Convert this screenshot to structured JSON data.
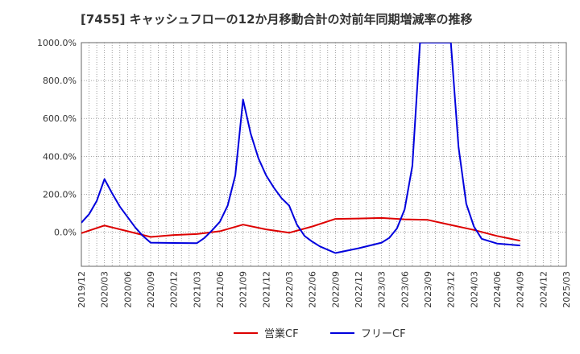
{
  "chart_data": {
    "type": "line",
    "title": "[7455]  キャッシュフローの12か月移動合計の対前年同期増減率の推移",
    "xlabel": "",
    "ylabel": "",
    "ylim": [
      -180,
      1000
    ],
    "yticks": [
      0,
      200,
      400,
      600,
      800,
      1000
    ],
    "ytick_labels": [
      "0.0%",
      "200.0%",
      "400.0%",
      "600.0%",
      "800.0%",
      "1000.0%"
    ],
    "x_months_range": [
      "2019/12",
      "2025/03"
    ],
    "xtick_labels": [
      "2019/12",
      "2020/03",
      "2020/06",
      "2020/09",
      "2020/12",
      "2021/03",
      "2021/06",
      "2021/09",
      "2021/12",
      "2022/03",
      "2022/06",
      "2022/09",
      "2022/12",
      "2023/03",
      "2023/06",
      "2023/09",
      "2023/12",
      "2024/03",
      "2024/06",
      "2024/09",
      "2024/12",
      "2025/03"
    ],
    "grid": true,
    "legend_position": "bottom-center",
    "series": [
      {
        "name": "営業CF",
        "color": "#dd0000",
        "x": [
          "2019/12",
          "2020/03",
          "2020/06",
          "2020/09",
          "2020/12",
          "2021/03",
          "2021/06",
          "2021/09",
          "2021/12",
          "2022/03",
          "2022/06",
          "2022/09",
          "2022/12",
          "2023/03",
          "2023/06",
          "2023/09",
          "2023/12",
          "2024/03",
          "2024/06",
          "2024/09"
        ],
        "values": [
          -5,
          35,
          5,
          -25,
          -15,
          -10,
          5,
          40,
          15,
          -3,
          30,
          70,
          72,
          75,
          68,
          65,
          38,
          12,
          -20,
          -45
        ]
      },
      {
        "name": "フリーCF",
        "color": "#0000dd",
        "x": [
          "2019/12",
          "2020/01",
          "2020/02",
          "2020/03",
          "2020/04",
          "2020/05",
          "2020/06",
          "2020/07",
          "2020/08",
          "2020/09",
          "2020/12",
          "2021/03",
          "2021/04",
          "2021/05",
          "2021/06",
          "2021/07",
          "2021/08",
          "2021/09",
          "2021/10",
          "2021/11",
          "2021/12",
          "2022/01",
          "2022/02",
          "2022/03",
          "2022/04",
          "2022/05",
          "2022/06",
          "2022/07",
          "2022/09",
          "2022/12",
          "2023/03",
          "2023/04",
          "2023/05",
          "2023/06",
          "2023/07",
          "2023/08",
          "2023/12",
          "2024/01",
          "2024/02",
          "2024/03",
          "2024/04",
          "2024/06",
          "2024/09"
        ],
        "values": [
          50,
          95,
          165,
          280,
          205,
          135,
          80,
          25,
          -20,
          -55,
          -57,
          -58,
          -30,
          10,
          55,
          140,
          300,
          700,
          520,
          390,
          300,
          235,
          180,
          140,
          40,
          -20,
          -50,
          -75,
          -110,
          -85,
          -55,
          -30,
          20,
          120,
          350,
          1000,
          1000,
          450,
          150,
          30,
          -35,
          -60,
          -70
        ]
      }
    ]
  }
}
